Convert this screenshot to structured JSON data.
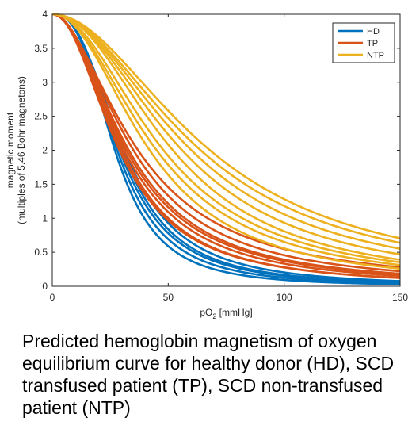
{
  "chart_data": {
    "type": "line",
    "xlabel_base": "pO",
    "xlabel_sub": "2",
    "xlabel_unit": " [mmHg]",
    "ylabel_line1": "magnetic moment",
    "ylabel_line2": "(multiples of 5.46 Bohr magnetons)",
    "xlim": [
      0,
      150
    ],
    "ylim": [
      0,
      4
    ],
    "xticks": [
      0,
      50,
      100,
      150
    ],
    "yticks": [
      0,
      0.5,
      1,
      1.5,
      2,
      2.5,
      3,
      3.5,
      4
    ],
    "grid": false,
    "legend_position": "top-right",
    "legend": [
      {
        "label": "HD",
        "color": "#0072BD"
      },
      {
        "label": "TP",
        "color": "#D95319"
      },
      {
        "label": "NTP",
        "color": "#EDB120"
      }
    ],
    "series": [
      {
        "name": "HD",
        "color": "#0072BD",
        "p50": 27,
        "n": 2.85
      },
      {
        "name": "HD",
        "color": "#0072BD",
        "p50": 28,
        "n": 2.7
      },
      {
        "name": "HD",
        "color": "#0072BD",
        "p50": 29,
        "n": 2.6
      },
      {
        "name": "HD",
        "color": "#0072BD",
        "p50": 30,
        "n": 2.6
      },
      {
        "name": "HD",
        "color": "#0072BD",
        "p50": 31,
        "n": 2.5
      },
      {
        "name": "TP",
        "color": "#D95319",
        "p50": 29,
        "n": 2.1
      },
      {
        "name": "TP",
        "color": "#D95319",
        "p50": 30,
        "n": 2.15
      },
      {
        "name": "TP",
        "color": "#D95319",
        "p50": 31,
        "n": 2.05
      },
      {
        "name": "TP",
        "color": "#D95319",
        "p50": 32,
        "n": 2.0
      },
      {
        "name": "TP",
        "color": "#D95319",
        "p50": 33,
        "n": 2.0
      },
      {
        "name": "TP",
        "color": "#D95319",
        "p50": 35,
        "n": 1.95
      },
      {
        "name": "TP",
        "color": "#D95319",
        "p50": 37,
        "n": 1.85
      },
      {
        "name": "NTP",
        "color": "#EDB120",
        "p50": 42,
        "n": 2.1
      },
      {
        "name": "NTP",
        "color": "#EDB120",
        "p50": 45,
        "n": 2.05
      },
      {
        "name": "NTP",
        "color": "#EDB120",
        "p50": 48,
        "n": 2.05
      },
      {
        "name": "NTP",
        "color": "#EDB120",
        "p50": 52,
        "n": 2.1
      },
      {
        "name": "NTP",
        "color": "#EDB120",
        "p50": 56,
        "n": 2.05
      },
      {
        "name": "NTP",
        "color": "#EDB120",
        "p50": 60,
        "n": 2.0
      },
      {
        "name": "NTP",
        "color": "#EDB120",
        "p50": 64,
        "n": 1.95
      },
      {
        "name": "NTP",
        "color": "#EDB120",
        "p50": 68,
        "n": 1.95
      }
    ]
  },
  "caption": "Predicted hemoglobin magnetism of oxygen equilibrium curve for healthy donor (HD), SCD transfused patient (TP), SCD non-transfused patient (NTP)"
}
